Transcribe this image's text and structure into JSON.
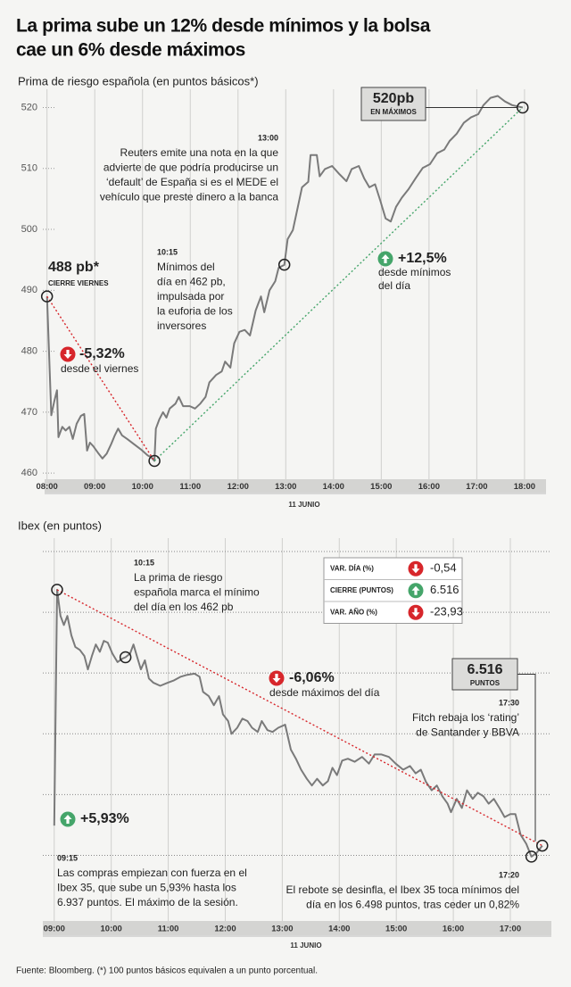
{
  "header": {
    "title": [
      "La prima sube un 12% desde mínimos y la bolsa",
      "cae un 6% desde máximos"
    ]
  },
  "chart_data": [
    {
      "type": "line",
      "ylabel": "Prima de riesgo española (en puntos básicos*)",
      "xlabel": "11 JUNIO",
      "color": "#7a7a7a",
      "grid": true,
      "ytick_labels": true,
      "xlim": [
        7.95,
        18.45
      ],
      "ylim": [
        459,
        523
      ],
      "xticks": [
        {
          "value": 8,
          "label": "08:00"
        },
        {
          "value": 9,
          "label": "09:00"
        },
        {
          "value": 10,
          "label": "10:00"
        },
        {
          "value": 11,
          "label": "11:00"
        },
        {
          "value": 12,
          "label": "12:00"
        },
        {
          "value": 13,
          "label": "13:00"
        },
        {
          "value": 14,
          "label": "14:00"
        },
        {
          "value": 15,
          "label": "15:00"
        },
        {
          "value": 16,
          "label": "16:00"
        },
        {
          "value": 17,
          "label": "17:00"
        },
        {
          "value": 18,
          "label": "18:00"
        }
      ],
      "yticks": [
        460,
        470,
        480,
        490,
        500,
        510,
        520
      ],
      "x": [
        8.0,
        8.09,
        8.15,
        8.21,
        8.24,
        8.32,
        8.39,
        8.47,
        8.54,
        8.62,
        8.71,
        8.78,
        8.84,
        8.9,
        8.97,
        9.08,
        9.16,
        9.25,
        9.34,
        9.42,
        9.49,
        9.57,
        9.68,
        9.83,
        9.98,
        10.11,
        10.18,
        10.25,
        10.28,
        10.35,
        10.43,
        10.5,
        10.57,
        10.69,
        10.76,
        10.85,
        10.99,
        11.1,
        11.21,
        11.32,
        11.4,
        11.54,
        11.66,
        11.73,
        11.84,
        11.92,
        12.03,
        12.14,
        12.25,
        12.37,
        12.48,
        12.55,
        12.66,
        12.78,
        12.85,
        12.97,
        13.04,
        13.15,
        13.22,
        13.34,
        13.47,
        13.52,
        13.65,
        13.71,
        13.82,
        13.97,
        14.12,
        14.27,
        14.38,
        14.53,
        14.64,
        14.75,
        14.87,
        14.98,
        15.09,
        15.2,
        15.31,
        15.43,
        15.57,
        15.72,
        15.87,
        16.02,
        16.17,
        16.32,
        16.43,
        16.58,
        16.73,
        16.88,
        17.03,
        17.14,
        17.29,
        17.44,
        17.59,
        17.74,
        17.96
      ],
      "values": [
        489,
        469.5,
        471.7,
        473.6,
        465.9,
        467.6,
        467.0,
        467.6,
        465.6,
        468.1,
        469.4,
        469.7,
        463.7,
        465.0,
        464.4,
        463.2,
        462.4,
        463.2,
        464.7,
        466.2,
        467.3,
        466.2,
        465.6,
        464.7,
        463.8,
        462.9,
        462.6,
        462.0,
        467.3,
        468.8,
        470.0,
        469.1,
        470.6,
        471.4,
        472.5,
        471.0,
        471.0,
        470.6,
        471.4,
        472.5,
        474.9,
        476.1,
        476.7,
        478.3,
        477.3,
        481.3,
        483.2,
        483.5,
        482.6,
        486.7,
        489.0,
        486.4,
        490.0,
        491.5,
        493.7,
        494.2,
        498.4,
        499.9,
        502.5,
        506.9,
        507.8,
        512.2,
        512.2,
        508.7,
        509.9,
        510.4,
        509.1,
        507.9,
        509.9,
        510.4,
        508.4,
        506.9,
        507.4,
        504.7,
        501.8,
        501.3,
        503.7,
        505.2,
        506.6,
        508.4,
        510.1,
        510.7,
        512.5,
        513.1,
        514.5,
        515.7,
        517.5,
        518.4,
        518.9,
        520.4,
        521.6,
        521.9,
        521.0,
        520.4,
        520
      ],
      "annotations": [
        {
          "label": "488 pb*",
          "sublabel": "CIERRE VIERNES"
        },
        {
          "label": "-5,32%",
          "direction": "down",
          "lines": [
            "desde el viernes"
          ]
        },
        {
          "time": "10:15",
          "lines": [
            "Mínimos del",
            "día en 462 pb,",
            "impulsada por",
            "la euforia de los",
            "inversores"
          ]
        },
        {
          "time": "13:00",
          "lines": [
            "Reuters emite una nota en la que",
            "advierte de que podría producirse un",
            "‘default’ de España si es el MEDE el",
            "vehículo que preste dinero a la banca"
          ]
        },
        {
          "label": "+12,5%",
          "direction": "up",
          "lines": [
            "desde mínimos",
            "del día"
          ]
        },
        {
          "label": "520pb",
          "sublabel": "EN MÁXIMOS",
          "boxed": true
        }
      ]
    },
    {
      "type": "line",
      "ylabel": "Ibex (en puntos)",
      "xlabel": "11 JUNIO",
      "color": "#7a7a7a",
      "grid": true,
      "ytick_labels": false,
      "xlim": [
        8.8,
        17.72
      ],
      "ylim": [
        6395,
        7022
      ],
      "xticks": [
        {
          "value": 9,
          "label": "09:00"
        },
        {
          "value": 10,
          "label": "10:00"
        },
        {
          "value": 11,
          "label": "11:00"
        },
        {
          "value": 12,
          "label": "12:00"
        },
        {
          "value": 13,
          "label": "13:00"
        },
        {
          "value": 14,
          "label": "14:00"
        },
        {
          "value": 15,
          "label": "15:00"
        },
        {
          "value": 16,
          "label": "16:00"
        },
        {
          "value": 17,
          "label": "17:00"
        }
      ],
      "yticks": [
        6500,
        6600,
        6700,
        6800,
        6900,
        7000
      ],
      "x": [
        9.0,
        9.05,
        9.11,
        9.17,
        9.23,
        9.3,
        9.37,
        9.45,
        9.53,
        9.59,
        9.66,
        9.73,
        9.8,
        9.87,
        9.94,
        10.02,
        10.11,
        10.2,
        10.25,
        10.33,
        10.39,
        10.45,
        10.52,
        10.59,
        10.66,
        10.74,
        10.86,
        10.99,
        11.1,
        11.22,
        11.33,
        11.46,
        11.55,
        11.61,
        11.71,
        11.8,
        11.89,
        11.96,
        12.05,
        12.11,
        12.21,
        12.3,
        12.39,
        12.47,
        12.57,
        12.64,
        12.74,
        12.83,
        12.93,
        13.05,
        13.15,
        13.24,
        13.33,
        13.43,
        13.52,
        13.61,
        13.71,
        13.8,
        13.88,
        13.96,
        14.05,
        14.15,
        14.27,
        14.4,
        14.52,
        14.62,
        14.74,
        14.87,
        14.99,
        15.12,
        15.24,
        15.34,
        15.43,
        15.52,
        15.62,
        15.71,
        15.81,
        15.9,
        15.96,
        16.06,
        16.15,
        16.24,
        16.34,
        16.43,
        16.53,
        16.62,
        16.71,
        16.81,
        16.9,
        17.0,
        17.09,
        17.18,
        17.28,
        17.37,
        17.46,
        17.56
      ],
      "values": [
        6549,
        6937,
        6894,
        6879,
        6894,
        6862,
        6843,
        6838,
        6828,
        6806,
        6828,
        6847,
        6835,
        6853,
        6850,
        6832,
        6818,
        6824,
        6826,
        6832,
        6847,
        6828,
        6806,
        6821,
        6791,
        6784,
        6779,
        6784,
        6788,
        6794,
        6797,
        6799,
        6794,
        6769,
        6762,
        6747,
        6762,
        6732,
        6721,
        6700,
        6710,
        6725,
        6721,
        6710,
        6703,
        6721,
        6706,
        6703,
        6710,
        6715,
        6674,
        6659,
        6641,
        6626,
        6615,
        6626,
        6615,
        6622,
        6644,
        6632,
        6656,
        6659,
        6654,
        6662,
        6651,
        6666,
        6666,
        6662,
        6651,
        6641,
        6647,
        6635,
        6641,
        6621,
        6607,
        6615,
        6597,
        6585,
        6571,
        6593,
        6578,
        6607,
        6593,
        6603,
        6597,
        6585,
        6593,
        6578,
        6563,
        6568,
        6568,
        6534,
        6519,
        6498,
        6504,
        6516
      ],
      "annotations": [
        {
          "time": "10:15",
          "lines": [
            "La prima de riesgo",
            "española marca el mínimo",
            "del día en los 462 pb"
          ]
        },
        {
          "label": "-6,06%",
          "direction": "down",
          "lines": [
            "desde máximos del día"
          ]
        },
        {
          "label": "6.516",
          "sublabel": "PUNTOS",
          "boxed": true
        },
        {
          "time": "17:30",
          "lines": [
            "Fitch rebaja los ‘rating’",
            "de Santander y BBVA"
          ]
        },
        {
          "label": "+5,93%",
          "direction": "up"
        },
        {
          "time": "09:15",
          "lines": [
            "Las compras empiezan con fuerza en el",
            "Ibex 35, que sube un 5,93% hasta los",
            "6.937 puntos. El máximo de la sesión."
          ]
        },
        {
          "time": "17:20",
          "lines": [
            "El rebote se desinfla, el Ibex 35 toca mínimos del",
            "día en los 6.498 puntos, tras ceder un 0,82%"
          ]
        }
      ],
      "table": {
        "rows": [
          {
            "label": "VAR. DÍA (%)",
            "direction": "down",
            "value": "-0,54"
          },
          {
            "label": "CIERRE (PUNTOS)",
            "direction": "up",
            "value": "6.516"
          },
          {
            "label": "VAR. AÑO (%)",
            "direction": "down",
            "value": "-23,93"
          }
        ]
      }
    }
  ],
  "footer": {
    "source": "Fuente: Bloomberg. (*) 100 puntos básicos equivalen a un punto porcentual."
  }
}
